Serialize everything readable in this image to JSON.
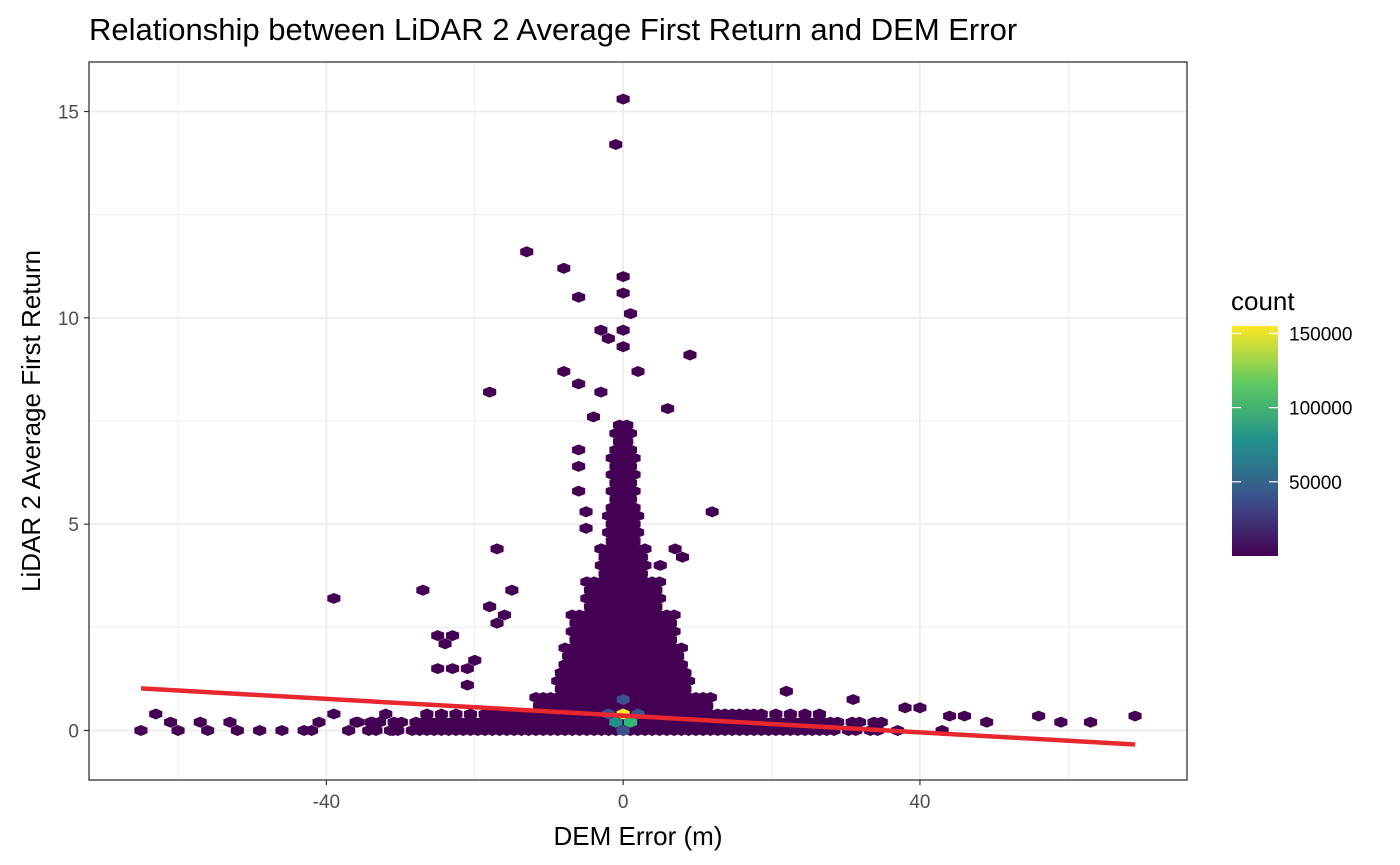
{
  "chart_data": {
    "type": "hexbin",
    "title": "Relationship between LiDAR 2 Average First Return and DEM Error",
    "xlabel": "DEM Error (m)",
    "ylabel": "LiDAR 2 Average First Return",
    "xlim": [
      -72,
      76
    ],
    "ylim": [
      -1.2,
      16.2
    ],
    "x_ticks": [
      -40,
      0,
      40
    ],
    "x_tick_labels": [
      "-40",
      "0",
      "40"
    ],
    "y_ticks": [
      0,
      5,
      10,
      15
    ],
    "y_tick_labels": [
      "0",
      "5",
      "10",
      "15"
    ],
    "grid": true,
    "legend": {
      "title": "count",
      "position": "right",
      "min": 1,
      "max": 155000,
      "breaks": [
        50000,
        100000,
        150000
      ],
      "break_labels": [
        "50000",
        "100000",
        "150000"
      ],
      "colors": [
        "#440154",
        "#3b528b",
        "#21918c",
        "#5ec962",
        "#fde725"
      ]
    },
    "bin_colors": {
      "low": "#440154",
      "mid_low": "#3b528b",
      "mid": "#21918c",
      "mid_high": "#35b779",
      "high": "#fde725"
    },
    "trend_line": {
      "name": "linear fit",
      "color": "#e8282e",
      "x": [
        -65,
        69
      ],
      "y": [
        1.02,
        -0.34
      ]
    },
    "outlier_bins": [
      [
        -65,
        0
      ],
      [
        -63,
        0.4
      ],
      [
        -61,
        0.2
      ],
      [
        -60,
        0
      ],
      [
        -57,
        0.2
      ],
      [
        -56,
        0
      ],
      [
        -53,
        0.2
      ],
      [
        -52,
        0
      ],
      [
        -49,
        0
      ],
      [
        -46,
        0
      ],
      [
        -43,
        0
      ],
      [
        -41,
        0.2
      ],
      [
        -39,
        3.2
      ],
      [
        -39,
        0.4
      ],
      [
        -42,
        0
      ],
      [
        -37,
        0
      ],
      [
        -36,
        0.2
      ],
      [
        -34,
        0.2
      ],
      [
        -32,
        0.4
      ],
      [
        -31,
        0
      ],
      [
        -27,
        3.4
      ],
      [
        -25,
        2.3
      ],
      [
        -24,
        2.1
      ],
      [
        -23,
        2.3
      ],
      [
        -25,
        1.5
      ],
      [
        -23,
        1.5
      ],
      [
        -21,
        1.5
      ],
      [
        -20,
        1.7
      ],
      [
        -21,
        1.1
      ],
      [
        -18,
        8.2
      ],
      [
        -17,
        4.4
      ],
      [
        -18,
        3.0
      ],
      [
        -16,
        2.8
      ],
      [
        -15,
        3.4
      ],
      [
        -17,
        2.6
      ],
      [
        -13,
        11.6
      ],
      [
        -8,
        11.2
      ],
      [
        -6,
        10.5
      ],
      [
        -3,
        9.7
      ],
      [
        -2,
        9.5
      ],
      [
        0,
        9.7
      ],
      [
        9,
        9.1
      ],
      [
        2,
        8.7
      ],
      [
        -8,
        8.7
      ],
      [
        -6,
        8.4
      ],
      [
        -3,
        8.2
      ],
      [
        6,
        7.8
      ],
      [
        -4,
        7.6
      ],
      [
        -6,
        6.8
      ],
      [
        -6,
        6.4
      ],
      [
        -6,
        5.8
      ],
      [
        12,
        5.3
      ],
      [
        -5,
        5.3
      ],
      [
        -5,
        4.9
      ],
      [
        5,
        4.0
      ],
      [
        7,
        4.4
      ],
      [
        8,
        4.2
      ],
      [
        -3,
        4.4
      ],
      [
        0,
        15.3
      ],
      [
        -1,
        14.2
      ],
      [
        0,
        11.0
      ],
      [
        0,
        10.6
      ],
      [
        1,
        10.1
      ],
      [
        0,
        9.3
      ],
      [
        22,
        0.95
      ],
      [
        31,
        0.75
      ],
      [
        38,
        0.55
      ],
      [
        40,
        0.55
      ],
      [
        44,
        0.35
      ],
      [
        46,
        0.35
      ],
      [
        49,
        0.2
      ],
      [
        56,
        0.35
      ],
      [
        59,
        0.2
      ],
      [
        63,
        0.2
      ],
      [
        69,
        0.35
      ],
      [
        43,
        0.0
      ],
      [
        37,
        0.0
      ]
    ],
    "peak_bins": [
      [
        0,
        0.4,
        "high"
      ],
      [
        1,
        0.2,
        "mid_high"
      ],
      [
        -1,
        0.2,
        "mid"
      ],
      [
        0,
        0.75,
        "mid_low"
      ],
      [
        0,
        0.0,
        "mid_low"
      ],
      [
        -2,
        0.4,
        "mid_low"
      ],
      [
        2,
        0.4,
        "mid_low"
      ]
    ]
  }
}
